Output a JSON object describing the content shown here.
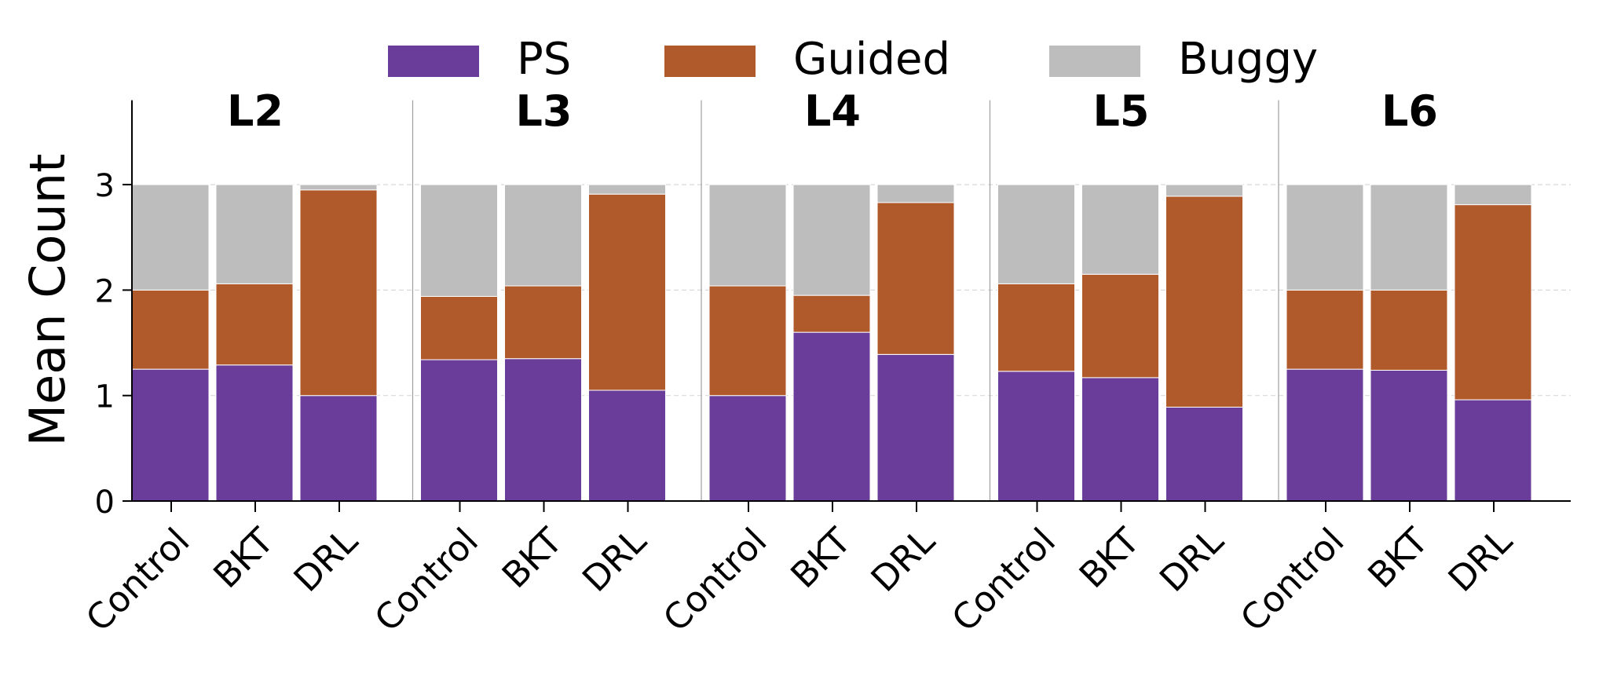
{
  "chart_data": {
    "type": "bar",
    "stacked": true,
    "title": "",
    "xlabel": "",
    "ylabel": "Mean Count",
    "ylim": [
      0,
      3.8
    ],
    "yticks": [
      0,
      1,
      2,
      3
    ],
    "grid": "horizontal-dashed",
    "legend_position": "top-center",
    "categories": [
      "Control",
      "BKT",
      "DRL"
    ],
    "series": [
      {
        "name": "PS",
        "color": "#6a3d9a"
      },
      {
        "name": "Guided",
        "color": "#b05a2b"
      },
      {
        "name": "Buggy",
        "color": "#bdbdbd"
      }
    ],
    "groups": [
      {
        "label": "L2",
        "bars": [
          {
            "category": "Control",
            "PS": 1.25,
            "Guided": 0.75,
            "Buggy": 1.0
          },
          {
            "category": "BKT",
            "PS": 1.29,
            "Guided": 0.77,
            "Buggy": 0.94
          },
          {
            "category": "DRL",
            "PS": 1.0,
            "Guided": 1.95,
            "Buggy": 0.05
          }
        ]
      },
      {
        "label": "L3",
        "bars": [
          {
            "category": "Control",
            "PS": 1.34,
            "Guided": 0.6,
            "Buggy": 1.06
          },
          {
            "category": "BKT",
            "PS": 1.35,
            "Guided": 0.69,
            "Buggy": 0.96
          },
          {
            "category": "DRL",
            "PS": 1.05,
            "Guided": 1.86,
            "Buggy": 0.09
          }
        ]
      },
      {
        "label": "L4",
        "bars": [
          {
            "category": "Control",
            "PS": 1.0,
            "Guided": 1.04,
            "Buggy": 0.96
          },
          {
            "category": "BKT",
            "PS": 1.6,
            "Guided": 0.35,
            "Buggy": 1.05
          },
          {
            "category": "DRL",
            "PS": 1.39,
            "Guided": 1.44,
            "Buggy": 0.17
          }
        ]
      },
      {
        "label": "L5",
        "bars": [
          {
            "category": "Control",
            "PS": 1.23,
            "Guided": 0.83,
            "Buggy": 0.94
          },
          {
            "category": "BKT",
            "PS": 1.17,
            "Guided": 0.98,
            "Buggy": 0.85
          },
          {
            "category": "DRL",
            "PS": 0.89,
            "Guided": 2.0,
            "Buggy": 0.11
          }
        ]
      },
      {
        "label": "L6",
        "bars": [
          {
            "category": "Control",
            "PS": 1.25,
            "Guided": 0.75,
            "Buggy": 1.0
          },
          {
            "category": "BKT",
            "PS": 1.24,
            "Guided": 0.76,
            "Buggy": 1.0
          },
          {
            "category": "DRL",
            "PS": 0.96,
            "Guided": 1.85,
            "Buggy": 0.19
          }
        ]
      }
    ]
  }
}
